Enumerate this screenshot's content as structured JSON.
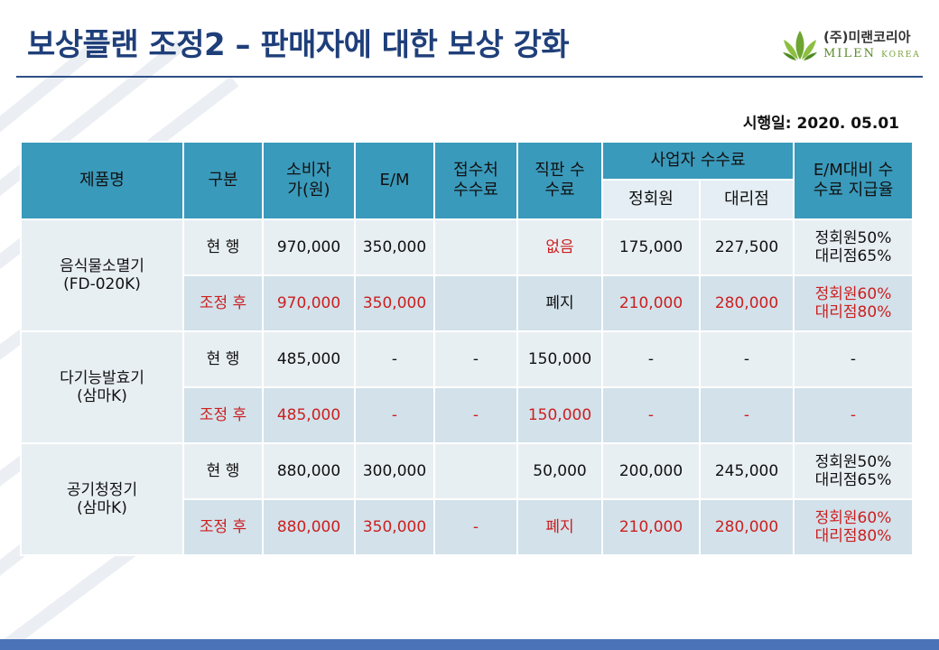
{
  "title": "보상플랜 조정2 – 판매자에 대한 보상 강화",
  "logo": {
    "company_ko": "(주)미랜코리아",
    "company_en": "MILEN",
    "company_en_sub": "KOREA"
  },
  "effective_date": "시행일: 2020. 05.01",
  "colors": {
    "header_bg": "#3a9abb",
    "row_light": "#e8eff3",
    "row_dark": "#d2e1ea",
    "accent_red": "#cc1f1f",
    "title_blue": "#1f3f7a"
  },
  "table": {
    "headers": {
      "product": "제품명",
      "division": "구분",
      "consumer_price": "소비자 가(원)",
      "em": "E/M",
      "reception_fee": "접수처 수수료",
      "direct_fee": "직판 수수료",
      "business_fee": "사업자 수수료",
      "regular_member": "정회원",
      "agency": "대리점",
      "em_rate": "E/M대비 수수료 지급율"
    },
    "products": [
      {
        "name": "음식물소멸기",
        "model": "(FD-020K)",
        "rows": [
          {
            "division": "현 행",
            "price": "970,000",
            "em": "350,000",
            "reception": "",
            "direct": "없음",
            "regular": "175,000",
            "agency": "227,500",
            "rate1": "정회원50%",
            "rate2": "대리점65%"
          },
          {
            "division": "조정 후",
            "price": "970,000",
            "em": "350,000",
            "reception": "",
            "direct": "폐지",
            "regular": "210,000",
            "agency": "280,000",
            "rate1": "정회원60%",
            "rate2": "대리점80%"
          }
        ]
      },
      {
        "name": "다기능발효기",
        "model": "(삼마K)",
        "rows": [
          {
            "division": "현 행",
            "price": "485,000",
            "em": "-",
            "reception": "-",
            "direct": "150,000",
            "regular": "-",
            "agency": "-",
            "rate1": "-",
            "rate2": ""
          },
          {
            "division": "조정 후",
            "price": "485,000",
            "em": "-",
            "reception": "-",
            "direct": "150,000",
            "regular": "-",
            "agency": "-",
            "rate1": "-",
            "rate2": ""
          }
        ]
      },
      {
        "name": "공기청정기",
        "model": "(삼마K)",
        "rows": [
          {
            "division": "현 행",
            "price": "880,000",
            "em": "300,000",
            "reception": "",
            "direct": "50,000",
            "regular": "200,000",
            "agency": "245,000",
            "rate1": "정회원50%",
            "rate2": "대리점65%"
          },
          {
            "division": "조정 후",
            "price": "880,000",
            "em": "350,000",
            "reception": "-",
            "direct": "폐지",
            "regular": "210,000",
            "agency": "280,000",
            "rate1": "정회원60%",
            "rate2": "대리점80%"
          }
        ]
      }
    ]
  }
}
